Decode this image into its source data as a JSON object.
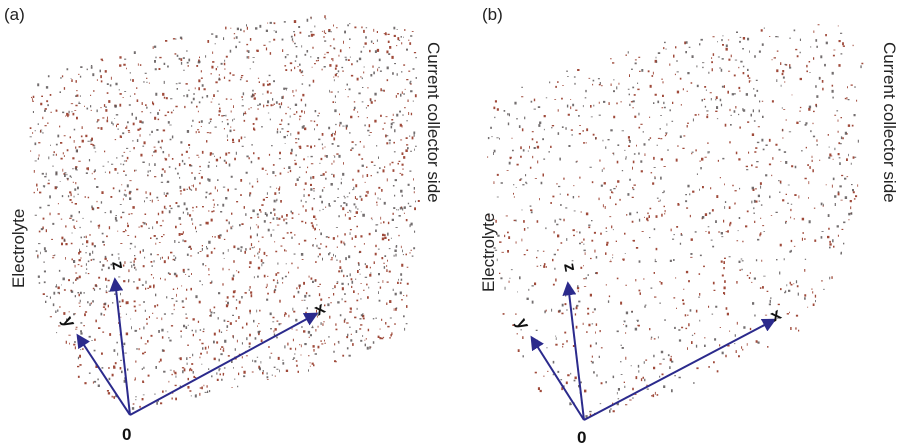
{
  "panels": [
    {
      "label": "(a)",
      "left_label": "Electrolyte",
      "right_label": "Current collector side",
      "axes": {
        "origin": "0",
        "x": "x",
        "y": "y",
        "z": "z"
      }
    },
    {
      "label": "(b)",
      "left_label": "Electrolyte",
      "right_label": "Current collector side",
      "axes": {
        "origin": "0",
        "x": "x",
        "y": "y",
        "z": "z"
      }
    }
  ]
}
